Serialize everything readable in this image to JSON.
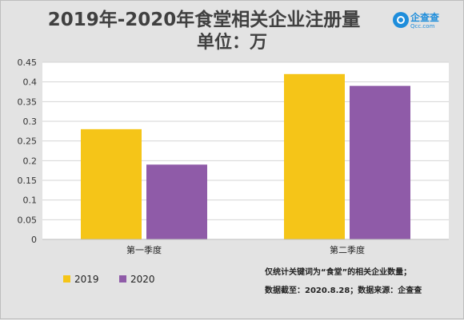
{
  "title": "2019年-2020年食堂相关企业注册量",
  "subtitle": "单位：万",
  "logo": {
    "brand": "企查查",
    "domain": "Qcc.com"
  },
  "footnotes": [
    "仅统计关键词为“食堂”的相关企业数量；",
    "数据截至：2020.8.28；数据来源：企查查"
  ],
  "colors": {
    "2019": "#f5c518",
    "2020": "#8f5ba8"
  },
  "chart_data": {
    "type": "bar",
    "categories": [
      "第一季度",
      "第二季度"
    ],
    "series": [
      {
        "name": "2019",
        "values": [
          0.28,
          0.42
        ]
      },
      {
        "name": "2020",
        "values": [
          0.19,
          0.39
        ]
      }
    ],
    "ylim": [
      0,
      0.45
    ],
    "yticks": [
      "0",
      "0.05",
      "0.1",
      "0.15",
      "0.2",
      "0.25",
      "0.3",
      "0.35",
      "0.4",
      "0.45"
    ],
    "grid": true,
    "legend_position": "bottom-left"
  }
}
